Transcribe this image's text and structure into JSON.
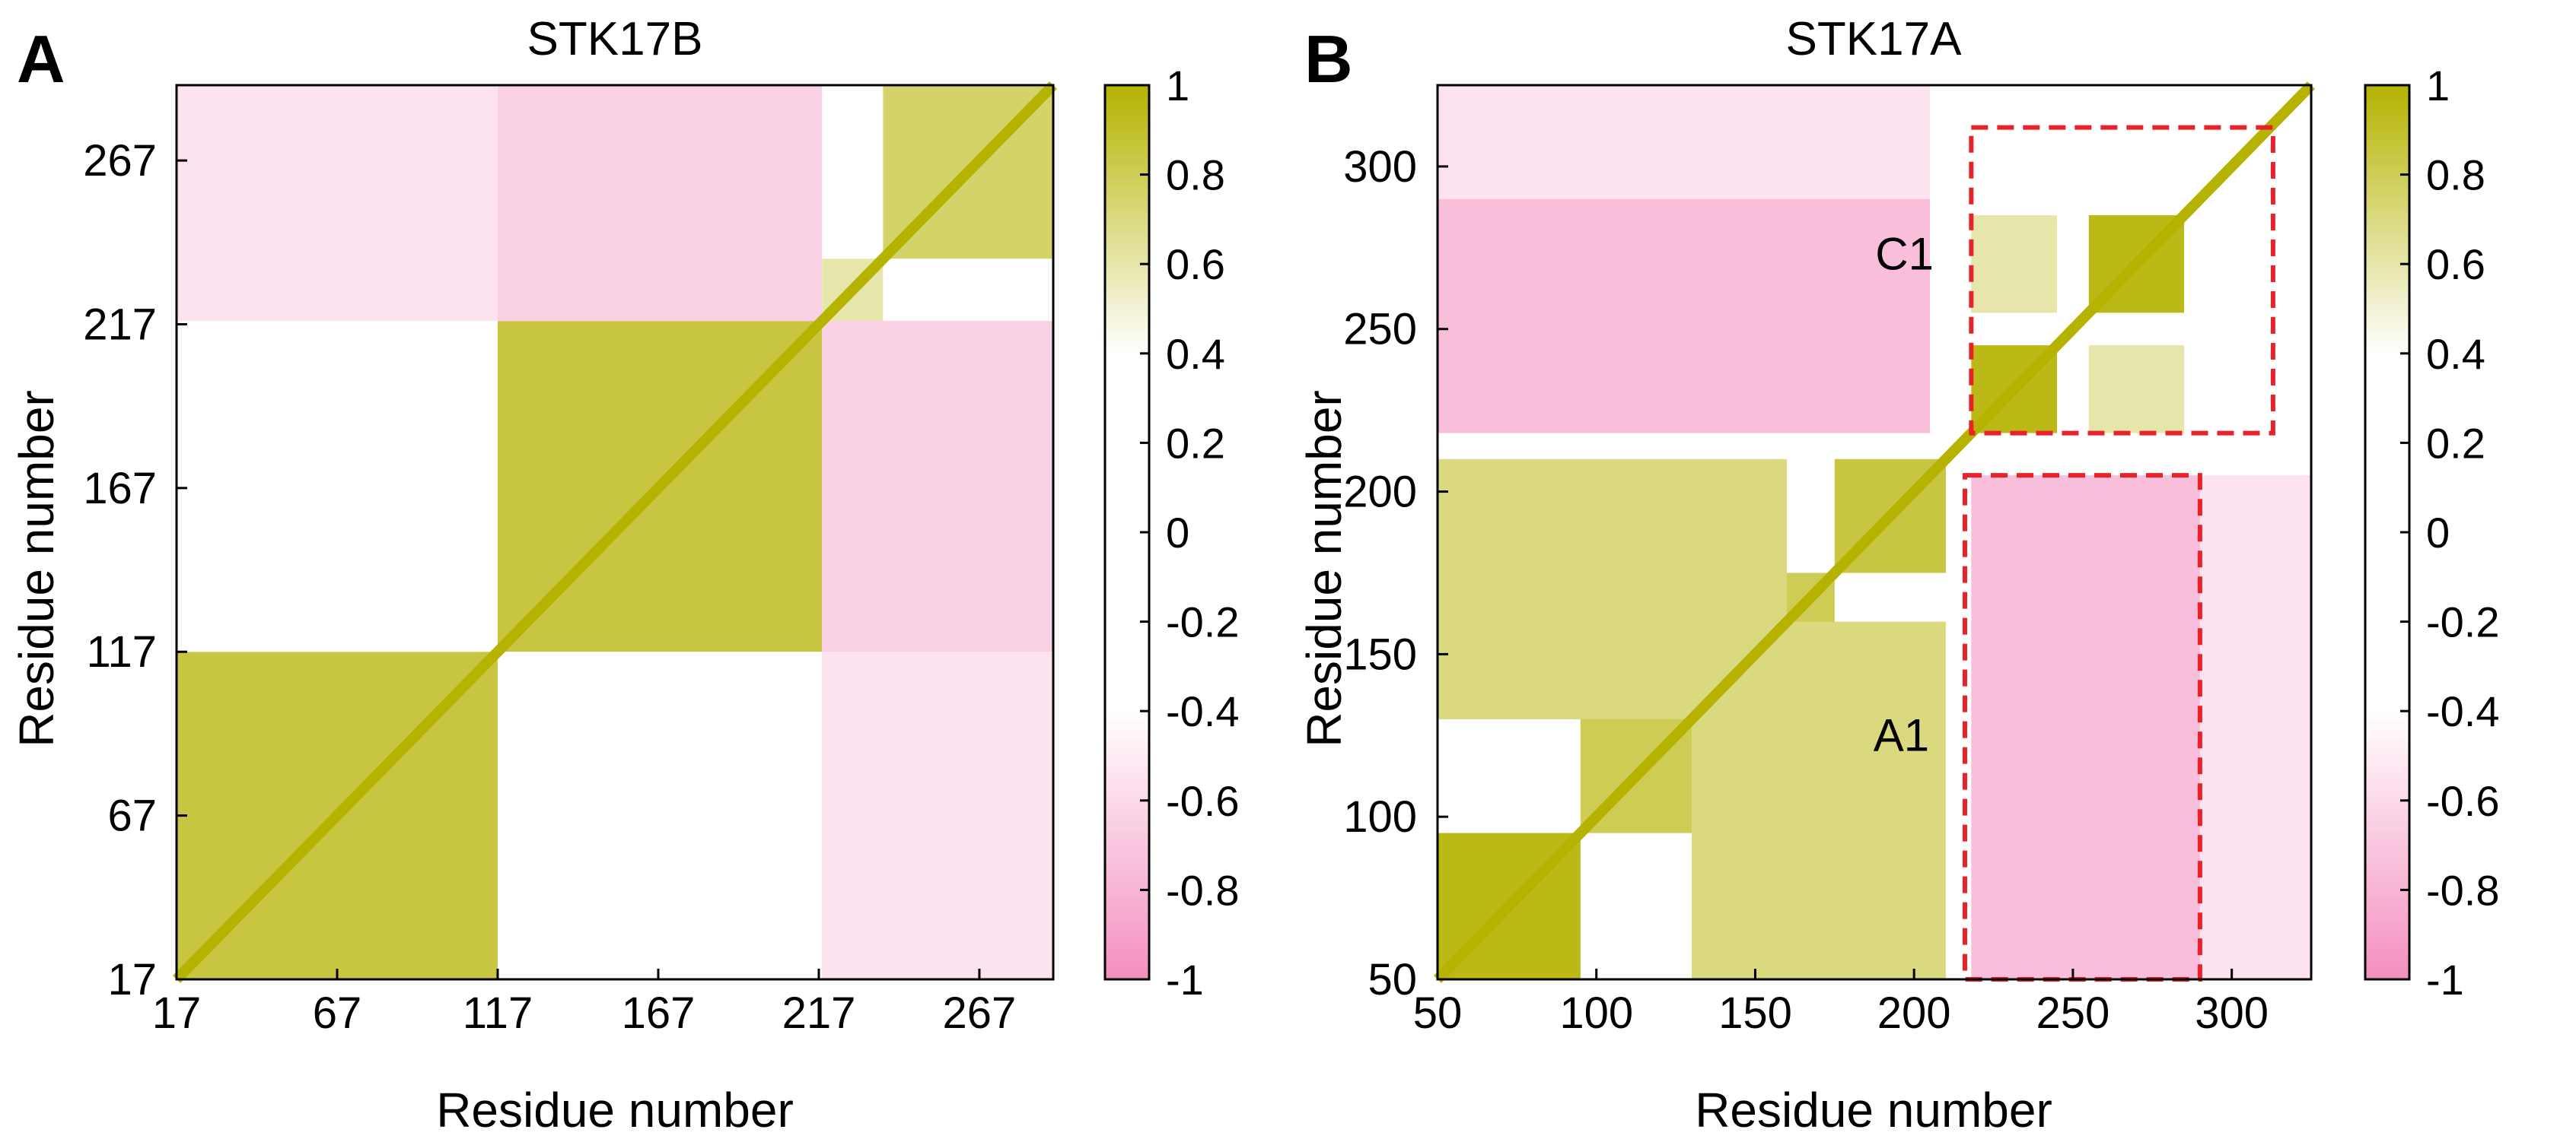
{
  "colors": {
    "positive": "#b5b300",
    "negative": "#f48fbf",
    "neutral": "#ffffff",
    "box": "#e8222a"
  },
  "colormap": {
    "low": -1,
    "high": 1,
    "white_band": [
      -0.4,
      0.4
    ]
  },
  "chart_data": [
    {
      "type": "heatmap",
      "panel_letter": "A",
      "title": "STK17B",
      "xlabel": "Residue number",
      "ylabel": "Residue number",
      "xlim": [
        17,
        290
      ],
      "ylim": [
        17,
        290
      ],
      "xticks": [
        "17",
        "67",
        "117",
        "167",
        "217",
        "267"
      ],
      "yticks": [
        "17",
        "67",
        "117",
        "167",
        "217",
        "267"
      ],
      "colorbar_ticks": [
        "1",
        "0.8",
        "0.6",
        "0.4",
        "0.2",
        "0",
        "-0.2",
        "-0.4",
        "-0.6",
        "-0.8",
        "-1"
      ],
      "blocks": [
        {
          "x": [
            17,
            117
          ],
          "y": [
            17,
            117
          ],
          "value": 0.85
        },
        {
          "x": [
            117,
            218
          ],
          "y": [
            117,
            218
          ],
          "value": 0.85
        },
        {
          "x": [
            237,
            290
          ],
          "y": [
            237,
            290
          ],
          "value": 0.75
        },
        {
          "x": [
            117,
            218
          ],
          "y": [
            17,
            117
          ],
          "value": -0.3
        },
        {
          "x": [
            17,
            117
          ],
          "y": [
            117,
            218
          ],
          "value": -0.3
        },
        {
          "x": [
            218,
            290
          ],
          "y": [
            17,
            117
          ],
          "value": -0.55
        },
        {
          "x": [
            17,
            117
          ],
          "y": [
            218,
            290
          ],
          "value": -0.55
        },
        {
          "x": [
            218,
            290
          ],
          "y": [
            117,
            218
          ],
          "value": -0.65
        },
        {
          "x": [
            117,
            218
          ],
          "y": [
            218,
            290
          ],
          "value": -0.65
        },
        {
          "x": [
            218,
            237
          ],
          "y": [
            218,
            237
          ],
          "value": 0.6
        }
      ],
      "annotations": []
    },
    {
      "type": "heatmap",
      "panel_letter": "B",
      "title": "STK17A",
      "xlabel": "Residue number",
      "ylabel": "Residue number",
      "xlim": [
        50,
        325
      ],
      "ylim": [
        50,
        325
      ],
      "xticks": [
        "50",
        "100",
        "150",
        "200",
        "250",
        "300"
      ],
      "yticks": [
        "50",
        "100",
        "150",
        "200",
        "250",
        "300"
      ],
      "colorbar_ticks": [
        "1",
        "0.8",
        "0.6",
        "0.4",
        "0.2",
        "0",
        "-0.2",
        "-0.4",
        "-0.6",
        "-0.8",
        "-1"
      ],
      "blocks": [
        {
          "x": [
            50,
            95
          ],
          "y": [
            50,
            95
          ],
          "value": 0.95
        },
        {
          "x": [
            95,
            175
          ],
          "y": [
            95,
            175
          ],
          "value": 0.8
        },
        {
          "x": [
            175,
            210
          ],
          "y": [
            175,
            210
          ],
          "value": 0.85
        },
        {
          "x": [
            218,
            245
          ],
          "y": [
            218,
            245
          ],
          "value": 0.95
        },
        {
          "x": [
            255,
            285
          ],
          "y": [
            255,
            285
          ],
          "value": 0.95
        },
        {
          "x": [
            50,
            160
          ],
          "y": [
            130,
            210
          ],
          "value": 0.7
        },
        {
          "x": [
            130,
            210
          ],
          "y": [
            50,
            160
          ],
          "value": 0.7
        },
        {
          "x": [
            218,
            290
          ],
          "y": [
            50,
            205
          ],
          "value": -0.75
        },
        {
          "x": [
            50,
            205
          ],
          "y": [
            218,
            290
          ],
          "value": -0.75
        },
        {
          "x": [
            290,
            325
          ],
          "y": [
            50,
            205
          ],
          "value": -0.55
        },
        {
          "x": [
            50,
            205
          ],
          "y": [
            290,
            325
          ],
          "value": -0.55
        },
        {
          "x": [
            218,
            245
          ],
          "y": [
            255,
            285
          ],
          "value": 0.6
        },
        {
          "x": [
            255,
            285
          ],
          "y": [
            218,
            245
          ],
          "value": 0.6
        }
      ],
      "boxes": [
        {
          "x": [
            218,
            313
          ],
          "y": [
            218,
            312
          ]
        },
        {
          "x": [
            216,
            290
          ],
          "y": [
            50,
            205
          ]
        }
      ],
      "annotations": [
        {
          "text": "C1",
          "x": 197,
          "y": 272
        },
        {
          "text": "A1",
          "x": 196,
          "y": 124
        }
      ]
    }
  ]
}
